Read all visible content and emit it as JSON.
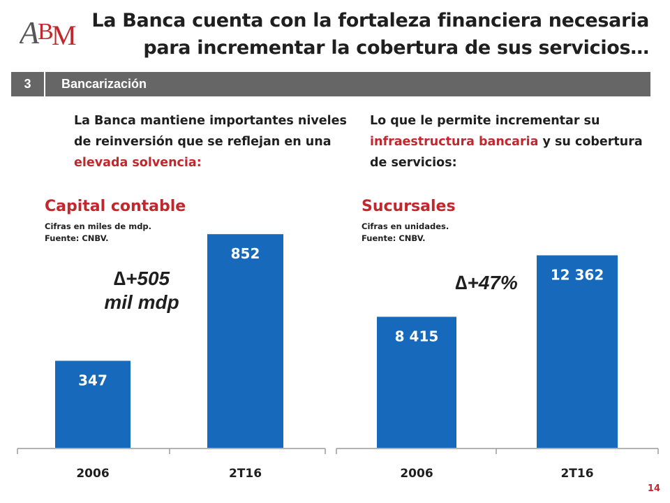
{
  "logo": {
    "text": "ABM"
  },
  "title": {
    "line1": "La Banca cuenta con la fortaleza financiera necesaria",
    "line2": "para incrementar la cobertura de sus servicios…"
  },
  "section": {
    "number": "3",
    "label": "Bancarización"
  },
  "intro_left": {
    "plain": "La Banca mantiene importantes niveles de reinversión que se reflejan en una ",
    "highlight": "elevada solvencia:"
  },
  "intro_right": {
    "plain_before": "Lo que le permite incrementar su ",
    "highlight": "infraestructura bancaria",
    "plain_after": " y su cobertura de servicios:"
  },
  "delta_left": {
    "symbol": "∆",
    "line1": "+505",
    "line2": "mil mdp"
  },
  "delta_right": {
    "symbol": "∆",
    "text": "+47%"
  },
  "page_number": "14",
  "colors": {
    "bar": "#1769bb",
    "accent": "#c0282d",
    "section_bar": "#666666"
  },
  "chart_data": [
    {
      "type": "bar",
      "title": "Capital contable",
      "notes": [
        "Cifras en miles de mdp.",
        "Fuente: CNBV."
      ],
      "categories": [
        "2006",
        "2T16"
      ],
      "values": [
        347,
        852
      ],
      "value_labels": [
        "347",
        "852"
      ],
      "ylim": [
        0,
        950
      ]
    },
    {
      "type": "bar",
      "title": "Sucursales",
      "notes": [
        "Cifras en unidades.",
        "Fuente: CNBV."
      ],
      "categories": [
        "2006",
        "2T16"
      ],
      "values": [
        8415,
        12362
      ],
      "value_labels": [
        "8 415",
        "12 362"
      ],
      "ylim": [
        0,
        15300
      ]
    }
  ]
}
